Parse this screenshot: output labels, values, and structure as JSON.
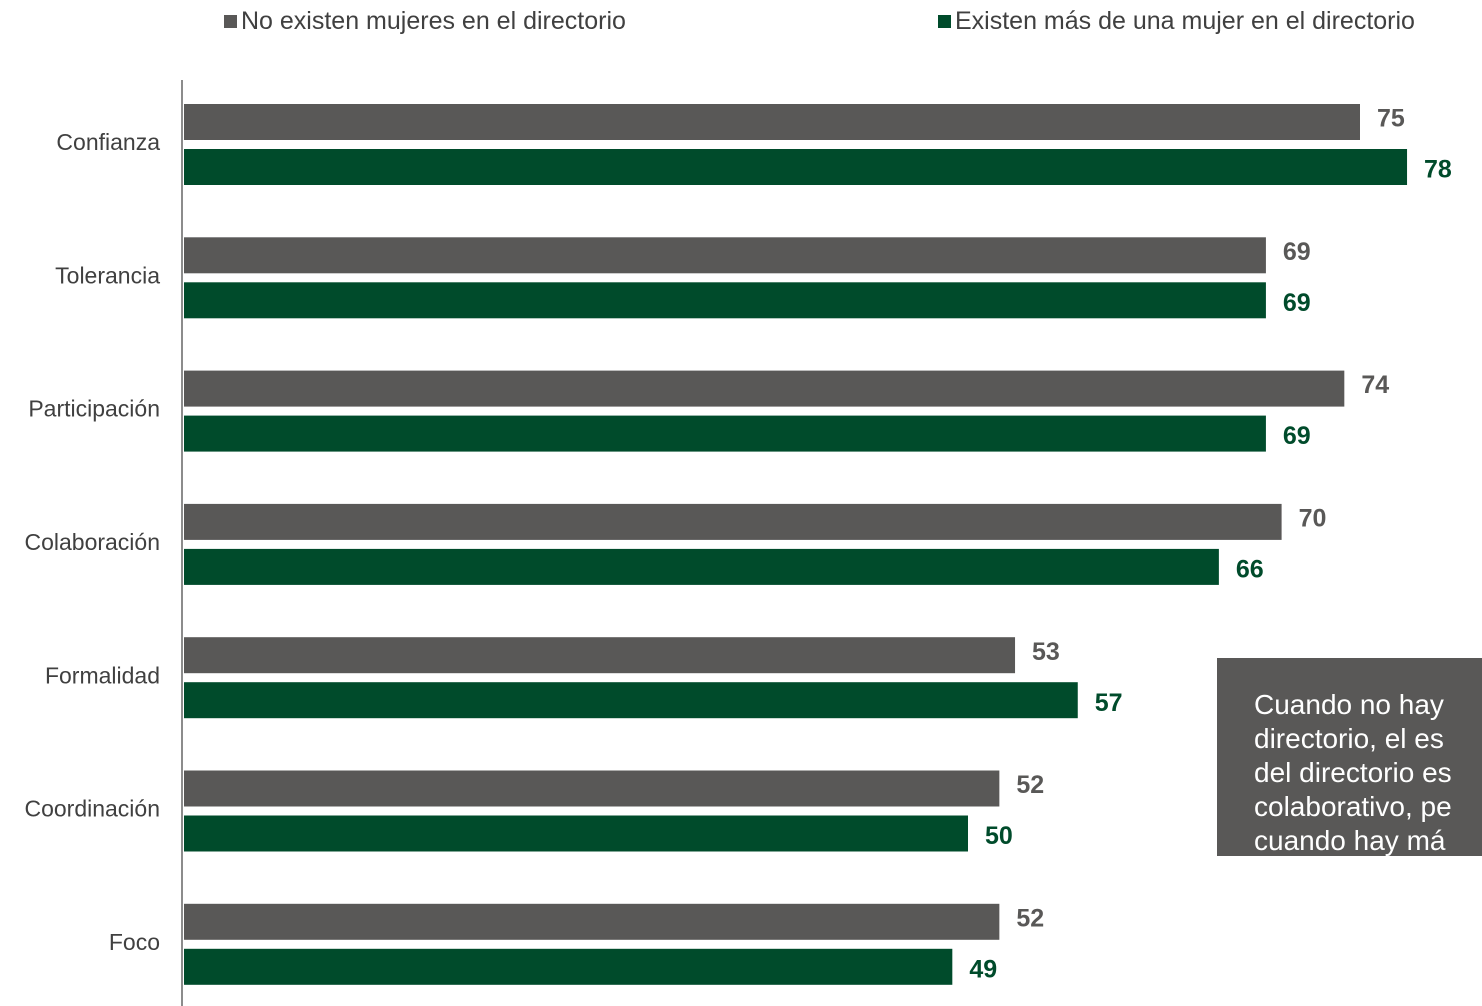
{
  "legend": [
    {
      "label": "No existen mujeres en el directorio",
      "color": "#595857"
    },
    {
      "label": "Existen más de una mujer en el directorio",
      "color": "#004b2b"
    }
  ],
  "note": {
    "lines": [
      "Cuando no hay",
      "directorio, el es",
      "del directorio es",
      "colaborativo, pe",
      "cuando hay má"
    ]
  },
  "chart_data": {
    "type": "bar",
    "orientation": "horizontal",
    "categories": [
      "Confianza",
      "Tolerancia",
      "Participación",
      "Colaboración",
      "Formalidad",
      "Coordinación",
      "Foco"
    ],
    "series": [
      {
        "name": "No existen mujeres en el directorio",
        "color": "#595857",
        "values": [
          75,
          69,
          74,
          70,
          53,
          52,
          52
        ]
      },
      {
        "name": "Existen más de una mujer en el directorio",
        "color": "#004b2b",
        "values": [
          78,
          69,
          69,
          66,
          57,
          50,
          49
        ]
      }
    ],
    "xlim": [
      0,
      80
    ],
    "grid": false,
    "data_labels": true,
    "legend_position": "top"
  }
}
